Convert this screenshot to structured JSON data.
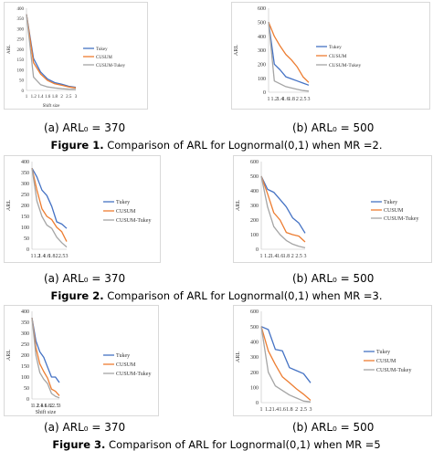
{
  "series_colors": [
    "#4472c4",
    "#ed7d31",
    "#a5a5a5"
  ],
  "charts": [
    {
      "id": "fig1a",
      "ylabel": "ARL",
      "xlabel": "Shift size",
      "sublabel": "(a)  ARL₀ = 370",
      "chart_data": {
        "type": "line",
        "categories": [
          "1",
          "1.2",
          "1.4",
          "1.6",
          "1.8",
          "2",
          "2.5",
          "3"
        ],
        "ylim": [
          0,
          400
        ],
        "yticks": [
          0,
          50,
          100,
          150,
          200,
          250,
          300,
          350,
          400
        ],
        "grid": false,
        "legend": "right",
        "series": [
          {
            "name": "Tukey",
            "values": [
              370,
              155,
              90,
              55,
              38,
              30,
              20,
              15
            ]
          },
          {
            "name": "CUSUM",
            "values": [
              370,
              135,
              80,
              48,
              32,
              25,
              17,
              12
            ]
          },
          {
            "name": "CUSUM-Tukey",
            "values": [
              370,
              65,
              28,
              17,
              12,
              8,
              6,
              5
            ]
          }
        ]
      }
    },
    {
      "id": "fig1b",
      "ylabel": "ARL",
      "xlabel": "",
      "sublabel": "(b) ARL₀ = 500",
      "chart_data": {
        "type": "line",
        "categories": [
          "1",
          "1.2",
          "1.4",
          "1.6",
          "1.8",
          "2",
          "2.5",
          "3"
        ],
        "ylim": [
          0,
          600
        ],
        "yticks": [
          0,
          100,
          200,
          300,
          400,
          500,
          600
        ],
        "grid": false,
        "legend": "right",
        "series": [
          {
            "name": "Tukey",
            "values": [
              500,
              200,
              160,
              110,
              95,
              80,
              65,
              50
            ]
          },
          {
            "name": "CUSUM",
            "values": [
              500,
              400,
              330,
              270,
              230,
              180,
              110,
              70
            ]
          },
          {
            "name": "CUSUM-Tukey",
            "values": [
              500,
              80,
              60,
              40,
              30,
              20,
              12,
              8
            ]
          }
        ]
      }
    },
    {
      "id": "fig2a",
      "ylabel": "ARL",
      "xlabel": "",
      "sublabel": "(a)  ARL₀ = 370",
      "chart_data": {
        "type": "line",
        "categories": [
          "1",
          "1.2",
          "1.4",
          "1.6",
          "1.8",
          "2",
          "2.5",
          "3"
        ],
        "ylim": [
          0,
          400
        ],
        "yticks": [
          0,
          50,
          100,
          150,
          200,
          250,
          300,
          350,
          400
        ],
        "grid": false,
        "legend": "right",
        "series": [
          {
            "name": "Tukey",
            "values": [
              370,
              330,
              270,
              245,
              195,
              125,
              115,
              95
            ]
          },
          {
            "name": "CUSUM",
            "values": [
              370,
              270,
              185,
              150,
              135,
              100,
              80,
              35
            ]
          },
          {
            "name": "CUSUM-Tukey",
            "values": [
              370,
              220,
              150,
              110,
              95,
              55,
              30,
              10
            ]
          }
        ]
      }
    },
    {
      "id": "fig2b",
      "ylabel": "ARL",
      "xlabel": "",
      "sublabel": "(b) ARL₀ = 500",
      "chart_data": {
        "type": "line",
        "categories": [
          "1",
          "1.2",
          "1.4",
          "1.6",
          "1.8",
          "2",
          "2.5",
          "3"
        ],
        "ylim": [
          0,
          600
        ],
        "yticks": [
          0,
          100,
          200,
          300,
          400,
          500,
          600
        ],
        "grid": false,
        "legend": "right",
        "series": [
          {
            "name": "Tukey",
            "values": [
              500,
              410,
              390,
              340,
              290,
              215,
              180,
              110
            ]
          },
          {
            "name": "CUSUM",
            "values": [
              500,
              380,
              250,
              200,
              115,
              100,
              90,
              50
            ]
          },
          {
            "name": "CUSUM-Tukey",
            "values": [
              500,
              290,
              155,
              100,
              60,
              35,
              20,
              10
            ]
          }
        ]
      }
    },
    {
      "id": "fig3a",
      "ylabel": "ARL",
      "xlabel": "Shift size",
      "sublabel": "(a)  ARL₀ = 370",
      "chart_data": {
        "type": "line",
        "categories": [
          "1",
          "1.2",
          "1.4",
          "1.6",
          "1.8",
          "2",
          "2.5",
          "3"
        ],
        "ylim": [
          0,
          400
        ],
        "yticks": [
          0,
          50,
          100,
          150,
          200,
          250,
          300,
          350,
          400
        ],
        "grid": false,
        "legend": "right",
        "series": [
          {
            "name": "Tukey",
            "values": [
              370,
              265,
              215,
              190,
              145,
              100,
              100,
              75
            ]
          },
          {
            "name": "CUSUM",
            "values": [
              370,
              235,
              160,
              125,
              95,
              45,
              35,
              15
            ]
          },
          {
            "name": "CUSUM-Tukey",
            "values": [
              370,
              200,
              120,
              90,
              70,
              25,
              12,
              5
            ]
          }
        ]
      }
    },
    {
      "id": "fig3b",
      "ylabel": "ARL",
      "xlabel": "",
      "sublabel": "(b) ARL₀ = 500",
      "chart_data": {
        "type": "line",
        "categories": [
          "1",
          "1.2",
          "1.4",
          "1.6",
          "1.8",
          "2",
          "2.5",
          "3"
        ],
        "ylim": [
          0,
          600
        ],
        "yticks": [
          0,
          100,
          200,
          300,
          400,
          500,
          600
        ],
        "grid": false,
        "legend": "right",
        "series": [
          {
            "name": "Tukey",
            "values": [
              500,
              480,
              350,
              340,
              230,
              210,
              190,
              130
            ]
          },
          {
            "name": "CUSUM",
            "values": [
              500,
              340,
              250,
              170,
              130,
              90,
              55,
              15
            ]
          },
          {
            "name": "CUSUM-Tukey",
            "values": [
              500,
              200,
              110,
              80,
              50,
              30,
              10,
              5
            ]
          }
        ]
      }
    }
  ],
  "captions": [
    {
      "prefix": "Figure 1.",
      "text": " Comparison of ARL for Lognormal(0,1) when MR =2."
    },
    {
      "prefix": "Figure 2.",
      "text": " Comparison of ARL for Lognormal(0,1) when MR =3."
    },
    {
      "prefix": "Figure 3.",
      "text": " Comparison of ARL for Lognormal(0,1) when MR =5"
    }
  ]
}
